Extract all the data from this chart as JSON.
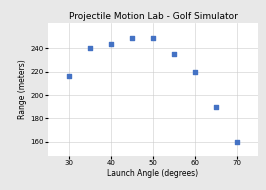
{
  "title": "Projectile Motion Lab - Golf Simulator",
  "xlabel": "Launch Angle (degrees)",
  "ylabel": "Range (meters)",
  "x": [
    30,
    35,
    40,
    45,
    50,
    55,
    60,
    65,
    70
  ],
  "y": [
    216,
    240,
    244,
    249,
    249,
    235,
    220,
    190,
    160
  ],
  "marker_color": "#4472c4",
  "marker_size": 8,
  "xlim": [
    25,
    75
  ],
  "ylim": [
    148,
    262
  ],
  "xticks": [
    30,
    40,
    50,
    60,
    70
  ],
  "yticks": [
    160,
    180,
    200,
    220,
    240
  ],
  "grid": true,
  "background_color": "#e8e8e8",
  "plot_bg_color": "#ffffff",
  "title_fontsize": 6.5,
  "label_fontsize": 5.5,
  "tick_fontsize": 5
}
